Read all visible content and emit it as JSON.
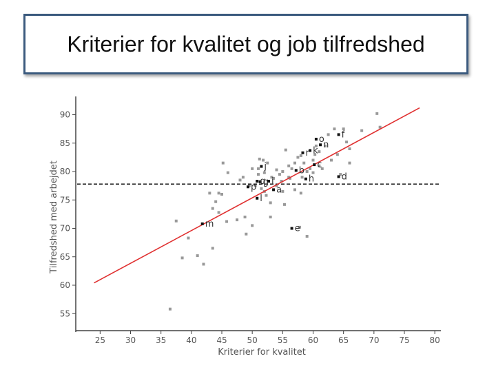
{
  "title": "Kriterier for kvalitet og job tilfredshed",
  "chart_data": {
    "type": "scatter",
    "xlabel": "Kriterier for kvalitet",
    "ylabel": "Tilfredshed med arbejdet",
    "xlim": [
      21,
      81
    ],
    "ylim": [
      52,
      92
    ],
    "xticks": [
      25,
      30,
      35,
      40,
      45,
      50,
      55,
      60,
      65,
      70,
      75,
      80
    ],
    "yticks": [
      55,
      60,
      65,
      70,
      75,
      80,
      85,
      90
    ],
    "reference_line": {
      "y": 77.8,
      "style": "dashed",
      "color": "#000000"
    },
    "regression_line": {
      "x": [
        24,
        77.5
      ],
      "y": [
        60.4,
        91.2
      ],
      "color": "#e03030"
    },
    "grey_points": {
      "color": "#999999",
      "x": [
        36.5,
        37.5,
        38.5,
        39.5,
        41,
        42,
        43,
        43.5,
        43.5,
        44,
        44.5,
        44.5,
        45,
        45.2,
        45.8,
        46,
        47.5,
        48,
        48.5,
        48.8,
        49,
        49.5,
        50,
        50,
        50.5,
        51,
        51,
        51.2,
        51.5,
        51.8,
        52,
        52,
        52.3,
        52.5,
        53,
        53,
        53.2,
        53.5,
        54,
        54,
        54.5,
        54.8,
        55,
        55,
        55.3,
        55.5,
        56,
        56,
        56.2,
        56.5,
        57,
        57,
        57.5,
        57.8,
        58,
        58,
        58.2,
        58.5,
        59,
        59,
        59.5,
        60,
        60,
        60.3,
        60.5,
        61,
        61,
        61.5,
        62,
        62.5,
        63,
        63.5,
        64,
        64.5,
        65,
        65.5,
        66,
        66,
        68,
        70.5,
        71
      ],
      "y": [
        55.8,
        71.3,
        64.8,
        68.3,
        65.2,
        63.7,
        76.2,
        73.5,
        66.5,
        74.7,
        72.8,
        76.2,
        76,
        81.5,
        71.2,
        79.8,
        71.5,
        78.5,
        79,
        72,
        69,
        77.5,
        80.5,
        70.5,
        77.5,
        79.5,
        80.5,
        82.2,
        77,
        82,
        79.8,
        76.5,
        75.8,
        81.5,
        72,
        74.5,
        79,
        78.8,
        77.5,
        80.3,
        79.5,
        78.3,
        76.5,
        80,
        74.2,
        83.8,
        79,
        81,
        78.8,
        80.5,
        76.8,
        81.5,
        82.5,
        70.2,
        76.2,
        82.8,
        79,
        81.5,
        80,
        68.6,
        80.5,
        79.8,
        82,
        83,
        84.5,
        81,
        83.5,
        80.5,
        84.5,
        86.5,
        82,
        87.5,
        83,
        79.5,
        87.5,
        85.2,
        81.5,
        84,
        87.2,
        90.2,
        87.8
      ]
    },
    "labeled_points": {
      "color": "#111111",
      "points": [
        {
          "label": "a",
          "x": 53.5,
          "y": 76.8
        },
        {
          "label": "b",
          "x": 57.2,
          "y": 80.2
        },
        {
          "label": "c",
          "x": 60.2,
          "y": 81.2
        },
        {
          "label": "d",
          "x": 64.2,
          "y": 79.1
        },
        {
          "label": "e",
          "x": 56.5,
          "y": 70
        },
        {
          "label": "f",
          "x": 64.2,
          "y": 86.5
        },
        {
          "label": "g",
          "x": 51.3,
          "y": 78.2
        },
        {
          "label": "h",
          "x": 58.8,
          "y": 78.7
        },
        {
          "label": "i",
          "x": 52.7,
          "y": 78.3
        },
        {
          "label": "j",
          "x": 51.5,
          "y": 80.9
        },
        {
          "label": "k",
          "x": 59.5,
          "y": 83.7
        },
        {
          "label": "l",
          "x": 50.8,
          "y": 75.3
        },
        {
          "label": "m",
          "x": 41.8,
          "y": 70.8
        },
        {
          "label": "n",
          "x": 61.2,
          "y": 84.7
        },
        {
          "label": "o",
          "x": 60.5,
          "y": 85.7
        },
        {
          "label": "p",
          "x": 49.3,
          "y": 77.3
        },
        {
          "label": "q",
          "x": 50.8,
          "y": 78.3
        },
        {
          "label": "r",
          "x": 58.3,
          "y": 83.3
        }
      ]
    }
  }
}
